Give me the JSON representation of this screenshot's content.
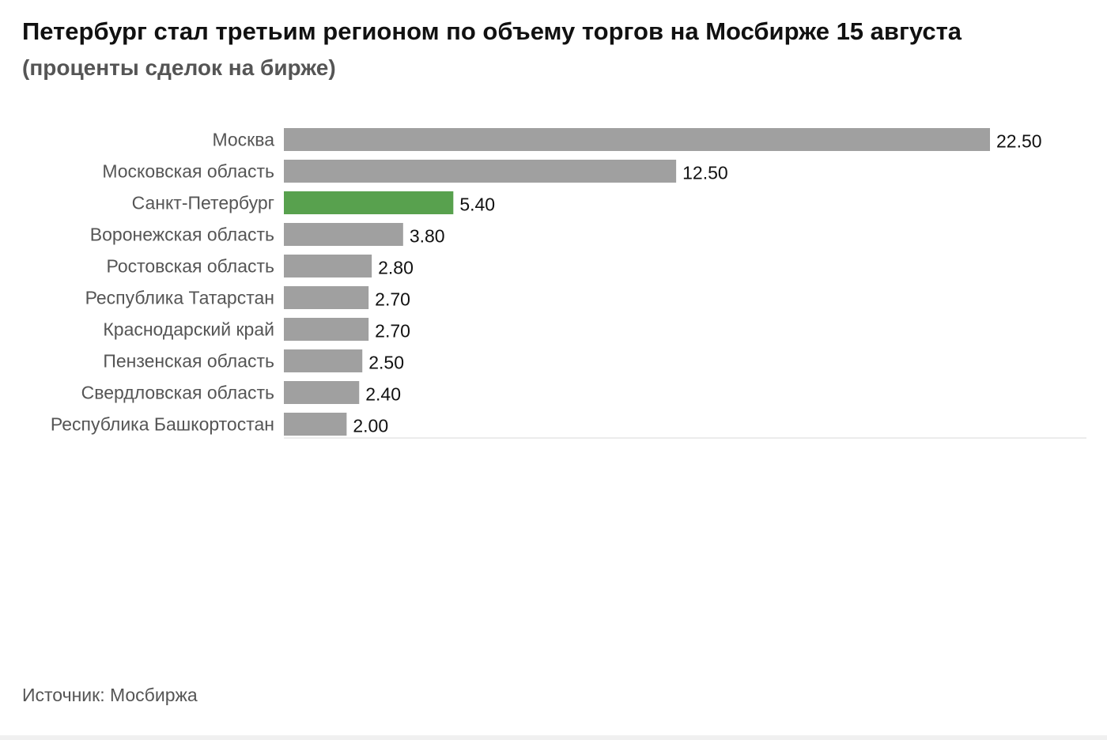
{
  "chart_data": {
    "type": "bar",
    "orientation": "horizontal",
    "title": "Петербург стал третьим регионом по объему торгов на Мосбирже 15 августа",
    "subtitle": "(проценты сделок на бирже)",
    "categories": [
      "Москва",
      "Московская область",
      "Санкт-Петербург",
      "Воронежская область",
      "Ростовская область",
      "Республика Татарстан",
      "Краснодарский край",
      "Пензенская область",
      "Свердловская область",
      "Республика Башкортостан"
    ],
    "values": [
      22.5,
      12.5,
      5.4,
      3.8,
      2.8,
      2.7,
      2.7,
      2.5,
      2.4,
      2.0
    ],
    "value_labels": [
      "22.50",
      "12.50",
      "5.40",
      "3.80",
      "2.80",
      "2.70",
      "2.70",
      "2.50",
      "2.40",
      "2.00"
    ],
    "highlight_category": "Санкт-Петербург",
    "colors": {
      "default": "#a0a0a0",
      "highlight": "#58a14e"
    },
    "xlim": [
      0,
      22.5
    ],
    "grid": false,
    "legend": "none"
  },
  "source": "Источник: Мосбиржа"
}
